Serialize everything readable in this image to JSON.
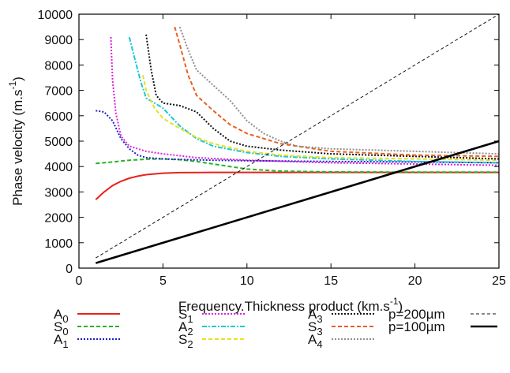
{
  "chart_data": {
    "type": "line",
    "xlabel": "Frequency.Thickness product (km.s",
    "xlabel_sup": "-1",
    "xlabel_suffix": ")",
    "ylabel": "Phase velocity (m.s",
    "ylabel_sup": "-1",
    "ylabel_suffix": ")",
    "xlim": [
      0,
      25
    ],
    "ylim": [
      0,
      10000
    ],
    "xticks": [
      0,
      5,
      10,
      15,
      20,
      25
    ],
    "yticks": [
      0,
      1000,
      2000,
      3000,
      4000,
      5000,
      6000,
      7000,
      8000,
      9000,
      10000
    ],
    "grid": false,
    "legend_position": "bottom",
    "series": [
      {
        "name": "A",
        "sub": "0",
        "color": "#e8221b",
        "style": "solid",
        "x": [
          1.0,
          1.5,
          2.0,
          2.5,
          3.0,
          3.5,
          4.0,
          5.0,
          6.0,
          8.0,
          10.0,
          15.0,
          20.0,
          25.0
        ],
        "y": [
          2700,
          3000,
          3250,
          3420,
          3540,
          3620,
          3680,
          3740,
          3760,
          3770,
          3770,
          3770,
          3770,
          3770
        ]
      },
      {
        "name": "S",
        "sub": "0",
        "color": "#22b422",
        "style": "dashed",
        "x": [
          1.0,
          2.0,
          3.0,
          4.0,
          5.0,
          6.0,
          7.0,
          8.0,
          9.0,
          10.0,
          12.0,
          15.0,
          20.0,
          25.0
        ],
        "y": [
          4120,
          4180,
          4250,
          4290,
          4300,
          4270,
          4200,
          4100,
          4000,
          3900,
          3820,
          3790,
          3780,
          3780
        ]
      },
      {
        "name": "A",
        "sub": "1",
        "color": "#1f1fc8",
        "style": "dotted",
        "x": [
          1.0,
          1.5,
          2.0,
          2.5,
          3.0,
          3.5,
          4.0,
          5.0,
          6.0,
          8.0,
          10.0,
          15.0,
          20.0,
          25.0
        ],
        "y": [
          6200,
          6150,
          5800,
          5100,
          4700,
          4450,
          4350,
          4300,
          4280,
          4250,
          4230,
          4200,
          4180,
          4150
        ]
      },
      {
        "name": "S",
        "sub": "1",
        "color": "#e020e0",
        "style": "dotted",
        "x": [
          1.9,
          2.0,
          2.2,
          2.5,
          3.0,
          4.0,
          5.0,
          7.0,
          10.0,
          15.0,
          20.0,
          25.0
        ],
        "y": [
          9100,
          7400,
          6100,
          5200,
          4800,
          4600,
          4500,
          4350,
          4250,
          4150,
          4100,
          4050
        ]
      },
      {
        "name": "A",
        "sub": "2",
        "color": "#18c8d8",
        "style": "dashdot",
        "x": [
          3.0,
          3.3,
          3.7,
          4.0,
          5.0,
          6.0,
          7.0,
          8.0,
          10.0,
          12.0,
          15.0,
          20.0,
          25.0
        ],
        "y": [
          9100,
          8300,
          7300,
          6700,
          6300,
          5600,
          5100,
          4800,
          4550,
          4400,
          4300,
          4200,
          4150
        ]
      },
      {
        "name": "S",
        "sub": "2",
        "color": "#e8e020",
        "style": "dashed",
        "x": [
          3.8,
          4.0,
          4.5,
          5.0,
          6.0,
          7.0,
          8.0,
          10.0,
          12.0,
          15.0,
          20.0,
          25.0
        ],
        "y": [
          7600,
          7000,
          6300,
          5900,
          5500,
          5150,
          4900,
          4600,
          4450,
          4350,
          4300,
          4250
        ]
      },
      {
        "name": "A",
        "sub": "3",
        "color": "#111111",
        "style": "dotted",
        "x": [
          4.0,
          4.3,
          4.6,
          5.0,
          6.0,
          7.0,
          8.0,
          9.0,
          10.0,
          12.0,
          15.0,
          20.0,
          25.0
        ],
        "y": [
          9200,
          7800,
          6800,
          6500,
          6400,
          6150,
          5500,
          5000,
          4800,
          4650,
          4500,
          4400,
          4300
        ]
      },
      {
        "name": "S",
        "sub": "3",
        "color": "#e86020",
        "style": "dashed",
        "x": [
          5.7,
          6.0,
          6.5,
          7.0,
          8.0,
          9.0,
          10.0,
          12.0,
          15.0,
          20.0,
          25.0
        ],
        "y": [
          9500,
          8800,
          7600,
          6800,
          6200,
          5650,
          5300,
          4900,
          4600,
          4450,
          4400
        ]
      },
      {
        "name": "A",
        "sub": "4",
        "color": "#909090",
        "style": "dotted",
        "x": [
          6.0,
          6.5,
          7.0,
          8.0,
          9.0,
          10.0,
          11.0,
          12.0,
          13.0,
          15.0,
          20.0,
          25.0
        ],
        "y": [
          9500,
          8600,
          7800,
          7200,
          6600,
          5800,
          5300,
          5000,
          4800,
          4700,
          4600,
          4500
        ]
      },
      {
        "name": "p=200µm",
        "color": "#111111",
        "style": "fine-dashed",
        "x": [
          1,
          25
        ],
        "y": [
          400,
          10000
        ]
      },
      {
        "name": "p=100µm",
        "color": "#000000",
        "style": "solid-thick",
        "x": [
          1,
          25
        ],
        "y": [
          200,
          5000
        ]
      }
    ]
  }
}
